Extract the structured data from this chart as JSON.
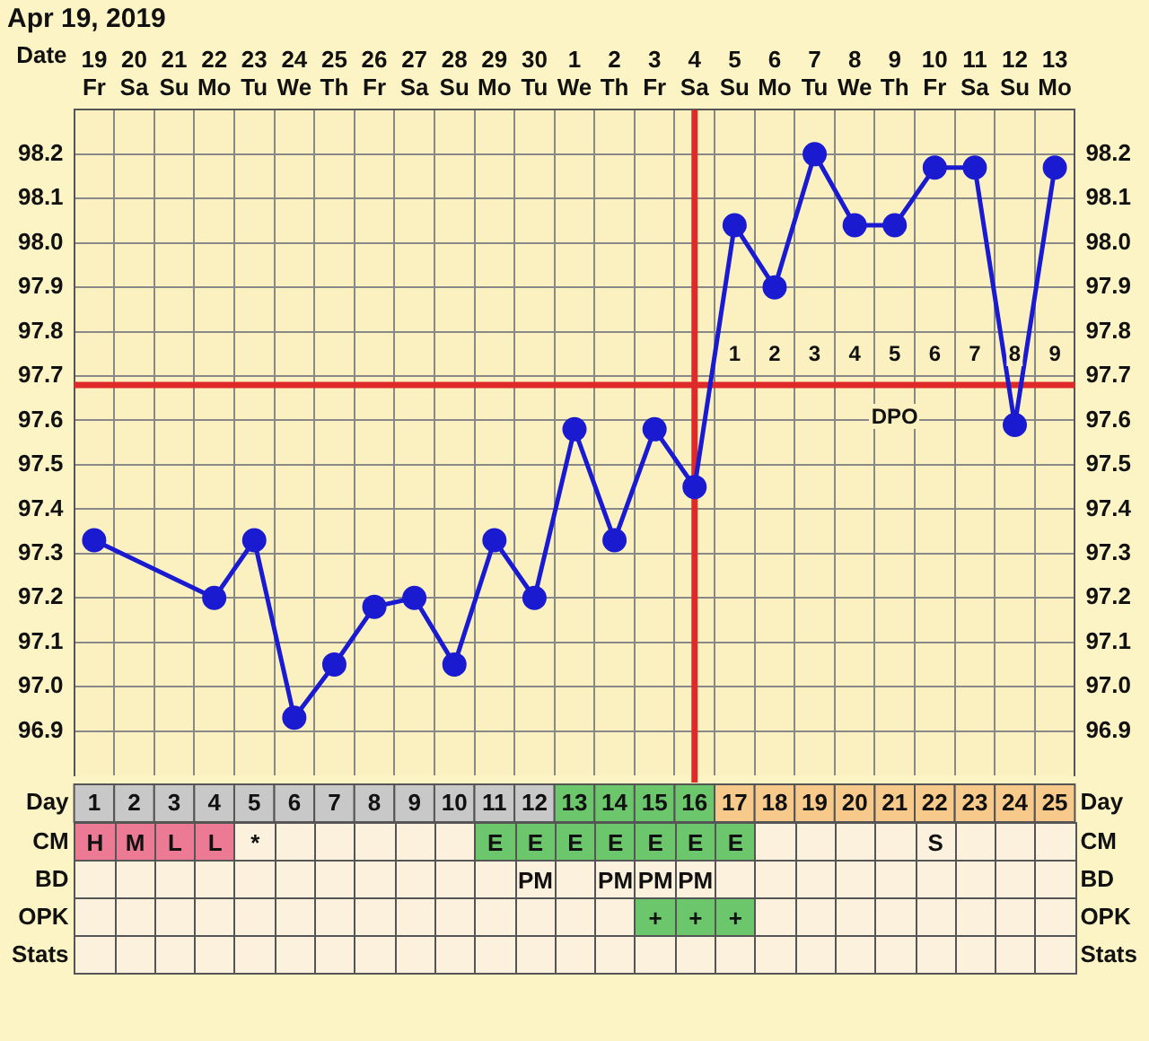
{
  "chart_data": [
    {
      "type": "line",
      "title": "Apr 19, 2019",
      "xlabel": "Date",
      "x2label": "Day",
      "categories": [
        "19 Fr",
        "20 Sa",
        "21 Su",
        "22 Mo",
        "23 Tu",
        "24 We",
        "25 Th",
        "26 Fr",
        "27 Sa",
        "28 Su",
        "29 Mo",
        "30 Tu",
        "1 We",
        "2 Th",
        "3 Fr",
        "4 Sa",
        "5 Su",
        "6 Mo",
        "7 Tu",
        "8 We",
        "9 Th",
        "10 Fr",
        "11 Sa",
        "12 Su",
        "13 Mo"
      ],
      "series": [
        {
          "color": "#1a1ad0",
          "values": [
            97.33,
            null,
            null,
            97.2,
            97.33,
            96.93,
            97.05,
            97.18,
            97.2,
            97.05,
            97.33,
            97.2,
            97.58,
            97.33,
            97.58,
            97.45,
            98.04,
            97.9,
            98.2,
            98.04,
            98.04,
            98.17,
            98.17,
            97.59,
            98.17
          ]
        }
      ],
      "ylim": [
        96.8,
        98.3
      ],
      "yticks": [
        96.9,
        {
          "value": 97.0,
          "label": "97.0"
        },
        97.1,
        97.2,
        97.3,
        97.4,
        97.5,
        97.6,
        97.7,
        97.8,
        97.9,
        {
          "value": 98.0,
          "label": "98.0"
        },
        98.1,
        98.2
      ],
      "y2lim": [
        96.8,
        98.3
      ],
      "y2ticks": [
        96.9,
        {
          "value": 97.0,
          "label": "97.0"
        },
        97.1,
        97.2,
        97.3,
        97.4,
        97.5,
        97.6,
        97.7,
        97.8,
        97.9,
        {
          "value": 98.0,
          "label": "98.0"
        },
        98.1,
        98.2
      ],
      "x2lim": [
        0.5,
        25.5
      ],
      "x2ticks": [
        1,
        2,
        3,
        4,
        5,
        6,
        7,
        8,
        9,
        10,
        11,
        12,
        13,
        14,
        15,
        16,
        17,
        18,
        19,
        20,
        21,
        22,
        23,
        24,
        25
      ],
      "grid": true,
      "legend": false,
      "marker": "circle",
      "ref_lines": [
        {
          "axis": "y",
          "value": 97.68,
          "color": "#e02a2a"
        },
        {
          "axis": "x",
          "value": "4 Sa",
          "color": "#e02a2a"
        }
      ],
      "annotations": [
        {
          "text": "1",
          "x": "5 Su",
          "y": 97.75
        },
        {
          "text": "2",
          "x": "6 Mo",
          "y": 97.75
        },
        {
          "text": "3",
          "x": "7 Tu",
          "y": 97.75
        },
        {
          "text": "4",
          "x": "8 We",
          "y": 97.75
        },
        {
          "text": "5",
          "x": "9 Th",
          "y": 97.75
        },
        {
          "text": "6",
          "x": "10 Fr",
          "y": 97.75
        },
        {
          "text": "7",
          "x": "11 Sa",
          "y": 97.75
        },
        {
          "text": "8",
          "x": "12 Su",
          "y": 97.75
        },
        {
          "text": "9",
          "x": "13 Mo",
          "y": 97.75
        },
        {
          "text": "DPO",
          "x": "9 Th",
          "y": 97.61
        }
      ]
    },
    {
      "type": "heatmap",
      "tick_labels": "y",
      "categories": [
        "19 Fr",
        "20 Sa",
        "21 Su",
        "22 Mo",
        "23 Tu",
        "24 We",
        "25 Th",
        "26 Fr",
        "27 Sa",
        "28 Su",
        "29 Mo",
        "30 Tu",
        "1 We",
        "2 Th",
        "3 Fr",
        "4 Sa",
        "5 Su",
        "6 Mo",
        "7 Tu",
        "8 We",
        "9 Th",
        "10 Fr",
        "11 Sa",
        "12 Su",
        "13 Mo"
      ],
      "y_categories": [
        "CM",
        "BD",
        "OPK",
        "Stats"
      ],
      "y2_categories": [
        "CM",
        "BD",
        "OPK",
        "Stats"
      ],
      "cells": [
        [
          null,
          null,
          null,
          null,
          null,
          null,
          null,
          null,
          null,
          null,
          null,
          null,
          null,
          null,
          null,
          null,
          null,
          null,
          null,
          null,
          null,
          null,
          null,
          null,
          null
        ],
        [
          null,
          null,
          null,
          null,
          null,
          null,
          null,
          null,
          null,
          null,
          null,
          null,
          null,
          null,
          null,
          null,
          null,
          null,
          null,
          null,
          null,
          null,
          null,
          null,
          null
        ],
        [
          null,
          null,
          null,
          null,
          null,
          null,
          null,
          null,
          null,
          null,
          null,
          null,
          null,
          null,
          null,
          null,
          null,
          null,
          null,
          null,
          null,
          null,
          null,
          null,
          null
        ],
        [
          null,
          null,
          null,
          null,
          null,
          null,
          null,
          null,
          null,
          null,
          null,
          null,
          null,
          null,
          null,
          null,
          null,
          null,
          null,
          null,
          null,
          null,
          null,
          null,
          null
        ]
      ],
      "cell_labels": [
        [
          "H",
          "M",
          "L",
          "L",
          "*",
          null,
          null,
          null,
          null,
          null,
          "E",
          "E",
          "E",
          "E",
          "E",
          "E",
          "E",
          null,
          null,
          null,
          null,
          "S",
          null,
          null,
          null
        ],
        [
          null,
          null,
          null,
          null,
          null,
          null,
          null,
          null,
          null,
          null,
          null,
          "PM",
          null,
          "PM",
          "PM",
          "PM",
          null,
          null,
          null,
          null,
          null,
          null,
          null,
          null,
          null
        ],
        [
          null,
          null,
          null,
          null,
          null,
          null,
          null,
          null,
          null,
          null,
          null,
          null,
          null,
          null,
          "+",
          "+",
          "+",
          null,
          null,
          null,
          null,
          null,
          null,
          null,
          null
        ],
        [
          null,
          null,
          null,
          null,
          null,
          null,
          null,
          null,
          null,
          null,
          null,
          null,
          null,
          null,
          null,
          null,
          null,
          null,
          null,
          null,
          null,
          null,
          null,
          null,
          null
        ]
      ]
    }
  ]
}
